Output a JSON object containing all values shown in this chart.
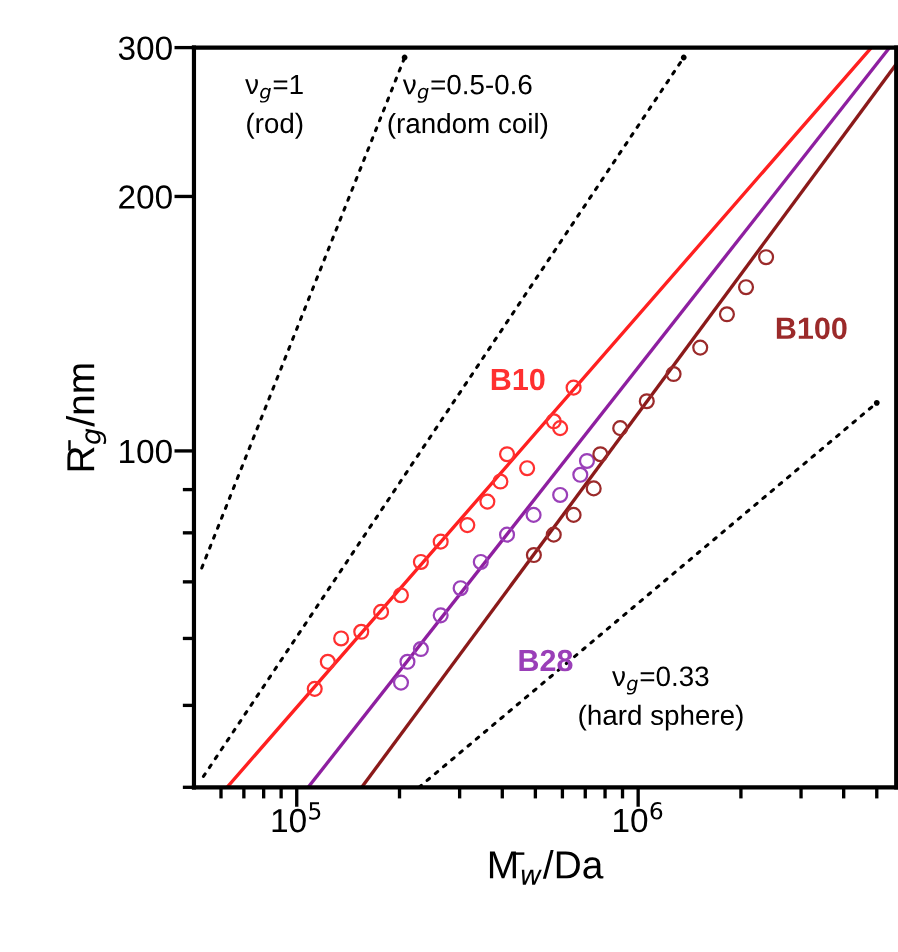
{
  "chart_data": {
    "type": "line",
    "xlabel": "M̄$_{w}$/Da",
    "ylabel": "R̄$_{g}$/nm",
    "log": "xy",
    "xlim": [
      50000,
      5700000
    ],
    "ylim": [
      40,
      300
    ],
    "xticks": [
      {
        "value": 60000,
        "label": null
      },
      {
        "value": 70000,
        "label": null
      },
      {
        "value": 80000,
        "label": null
      },
      {
        "value": 90000,
        "label": null
      },
      {
        "value": 100000,
        "label": "10$^{5}$"
      },
      {
        "value": 200000,
        "label": null
      },
      {
        "value": 300000,
        "label": null
      },
      {
        "value": 400000,
        "label": null
      },
      {
        "value": 500000,
        "label": null
      },
      {
        "value": 600000,
        "label": null
      },
      {
        "value": 700000,
        "label": null
      },
      {
        "value": 800000,
        "label": null
      },
      {
        "value": 900000,
        "label": null
      },
      {
        "value": 1000000,
        "label": "10$^{6}$"
      },
      {
        "value": 2000000,
        "label": null
      },
      {
        "value": 3000000,
        "label": null
      },
      {
        "value": 4000000,
        "label": null
      },
      {
        "value": 5000000,
        "label": null
      }
    ],
    "yticks": [
      {
        "value": 40,
        "label": null
      },
      {
        "value": 50,
        "label": null
      },
      {
        "value": 60,
        "label": null
      },
      {
        "value": 70,
        "label": null
      },
      {
        "value": 80,
        "label": null
      },
      {
        "value": 90,
        "label": null
      },
      100,
      200,
      300
    ],
    "grid": false,
    "legend": false,
    "annotations": [
      "ν$_{g}$=1\n(rod)",
      "ν$_{g}$=0.5-0.6\n(random coil)",
      "ν$_{g}$=0.33\n(hard sphere)"
    ],
    "series": [
      {
        "color": "#000000",
        "line_style": "dotted",
        "x": [
          52700,
          207000
        ],
        "values": [
          72.7,
          292
        ]
      },
      {
        "color": "#000000",
        "line_style": "dotted",
        "x": [
          53300,
          1360000
        ],
        "values": [
          41.2,
          292
        ]
      },
      {
        "color": "#000000",
        "line_style": "dotted",
        "x": [
          228000,
          5000000
        ],
        "values": [
          40,
          114
        ]
      },
      {
        "color": "#ff2020",
        "line_style": "solid",
        "x": [
          62500,
          4820000
        ],
        "values": [
          40,
          300
        ]
      },
      {
        "color": "#8e1fa0",
        "line_style": "solid",
        "x": [
          108000,
          5450000
        ],
        "values": [
          40,
          300
        ]
      },
      {
        "color": "#8b1a1a",
        "line_style": "solid",
        "x": [
          155000,
          5660000
        ],
        "values": [
          40,
          285.6
        ]
      },
      {
        "type": "scatter",
        "name": "B10",
        "color": "#ff3030",
        "marker": "circle",
        "x": [
          112900,
          123300,
          134900,
          154500,
          176600,
          201900,
          231000,
          264000,
          316000,
          361700,
          395000,
          413000,
          473000,
          566000,
          591000,
          647000
        ],
        "values": [
          52.3,
          56.3,
          60.0,
          61.1,
          64.5,
          67.5,
          73.9,
          78.1,
          81.7,
          87.1,
          92.0,
          99.1,
          95.4,
          108.4,
          106.4,
          118.8
        ]
      },
      {
        "type": "scatter",
        "name": "B28",
        "color": "#9a3fb8",
        "marker": "circle",
        "x": [
          202000,
          211000,
          231000,
          264000,
          302000,
          346000,
          413000,
          494000,
          591000,
          677000,
          708000
        ],
        "values": [
          53.2,
          56.3,
          58.3,
          63.9,
          68.8,
          73.9,
          79.6,
          84.0,
          88.7,
          93.7,
          97.3
        ]
      },
      {
        "type": "scatter",
        "name": "B100",
        "color": "#9b2a2a",
        "marker": "circle",
        "x": [
          495000,
          566000,
          647000,
          741000,
          775000,
          886000,
          1060000,
          1270000,
          1520000,
          1820000,
          2070000,
          2370000
        ],
        "values": [
          75.3,
          79.6,
          84.0,
          90.3,
          99.1,
          106.4,
          114.5,
          123.3,
          132.5,
          145.1,
          156.2,
          169.5
        ]
      }
    ]
  }
}
